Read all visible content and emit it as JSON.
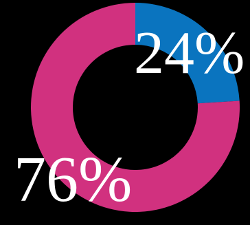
{
  "chart_data": {
    "type": "donut",
    "values": [
      24,
      76
    ],
    "value_labels": [
      "24%",
      "76%"
    ],
    "colors": [
      "#0a74bf",
      "#d1317f"
    ]
  }
}
